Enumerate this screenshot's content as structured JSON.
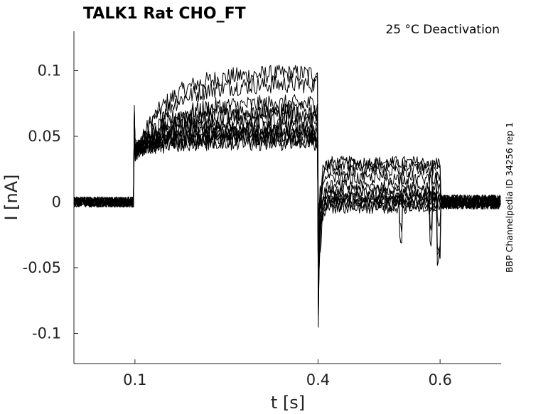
{
  "chart_data": {
    "type": "line",
    "title": "TALK1  Rat  CHO_FT",
    "annotation": "25 °C  Deactivation",
    "side_label": "BBP Channelpedia ID 34256 rep 1",
    "xlabel": "t [s]",
    "ylabel": "I [nA]",
    "xlim": [
      0.0,
      0.7
    ],
    "ylim": [
      -0.123,
      0.13
    ],
    "xticks": [
      {
        "value": 0.1,
        "label": "0.1"
      },
      {
        "value": 0.4,
        "label": "0.4"
      },
      {
        "value": 0.6,
        "label": "0.6"
      }
    ],
    "yticks": [
      {
        "value": 0.1,
        "label": "0.1"
      },
      {
        "value": 0.05,
        "label": "0.05"
      },
      {
        "value": 0,
        "label": "0"
      },
      {
        "value": -0.05,
        "label": "-0.05"
      },
      {
        "value": -0.1,
        "label": "-0.1"
      }
    ],
    "protocol": {
      "step_on": 0.1,
      "step_off": 0.4,
      "tail_end": 0.6
    },
    "series": [
      {
        "step_level": 0.035,
        "step_end": 0.098,
        "tail_level": 0.03
      },
      {
        "step_level": 0.036,
        "step_end": 0.09,
        "tail_level": 0.028
      },
      {
        "step_level": 0.036,
        "step_end": 0.075,
        "tail_level": 0.024
      },
      {
        "step_level": 0.037,
        "step_end": 0.07,
        "tail_level": 0.018
      },
      {
        "step_level": 0.037,
        "step_end": 0.066,
        "tail_level": 0.012
      },
      {
        "step_level": 0.038,
        "step_end": 0.062,
        "tail_level": 0.008
      },
      {
        "step_level": 0.038,
        "step_end": 0.058,
        "tail_level": 0.005
      },
      {
        "step_level": 0.039,
        "step_end": 0.055,
        "tail_level": 0.003
      },
      {
        "step_level": 0.039,
        "step_end": 0.052,
        "tail_level": 0.001
      },
      {
        "step_level": 0.04,
        "step_end": 0.05,
        "tail_level": 0.0
      },
      {
        "step_level": 0.04,
        "step_end": 0.048,
        "tail_level": -0.002
      },
      {
        "step_level": 0.041,
        "step_end": 0.046,
        "tail_level": -0.004
      }
    ]
  }
}
